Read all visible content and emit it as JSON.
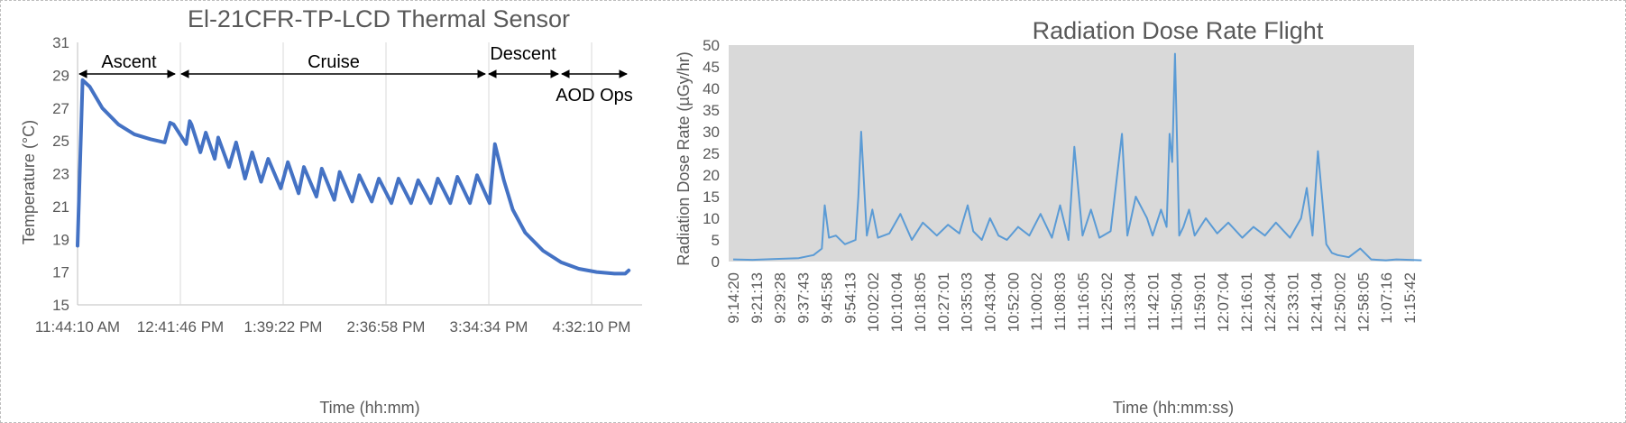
{
  "chart_data": [
    {
      "type": "line",
      "title": "El-21CFR-TP-LCD Thermal Sensor",
      "xlabel": "Time (hh:mm)",
      "ylabel": "Temperature (°C)",
      "ylim": [
        15,
        31
      ],
      "yticks": [
        "15",
        "17",
        "19",
        "21",
        "23",
        "25",
        "27",
        "29",
        "31"
      ],
      "xticks": [
        "11:44:10 AM",
        "12:41:46 PM",
        "1:39:22 PM",
        "2:36:58 PM",
        "3:34:34 PM",
        "4:32:10 PM"
      ],
      "grid": "vertical",
      "series_color": "#4472C4",
      "phases": [
        {
          "label": "Ascent"
        },
        {
          "label": "Cruise"
        },
        {
          "label": "Descent"
        },
        {
          "label": "AOD Ops"
        }
      ],
      "series": [
        {
          "x": [
            "11:44:10 AM",
            "11:47:00 AM",
            "11:51:00 AM",
            "11:58:00 AM",
            "12:07:00 PM",
            "12:16:00 PM",
            "12:25:00 PM",
            "12:33:00 PM",
            "12:36:00 PM",
            "12:38:00 PM",
            "12:45:00 PM",
            "12:47:00 PM",
            "12:48:00 PM",
            "12:53:00 PM",
            "12:56:00 PM",
            "1:01:00 PM",
            "1:03:00 PM",
            "1:09:00 PM",
            "1:13:00 PM",
            "1:18:00 PM",
            "1:22:00 PM",
            "1:27:00 PM",
            "1:31:00 PM",
            "1:38:00 PM",
            "1:42:00 PM",
            "1:48:00 PM",
            "1:51:00 PM",
            "1:58:00 PM",
            "2:01:00 PM",
            "2:08:00 PM",
            "2:11:00 PM",
            "2:18:00 PM",
            "2:22:00 PM",
            "2:29:00 PM",
            "2:33:00 PM",
            "2:40:00 PM",
            "2:44:00 PM",
            "2:51:00 PM",
            "2:55:00 PM",
            "3:02:00 PM",
            "3:06:00 PM",
            "3:13:00 PM",
            "3:17:00 PM",
            "3:24:00 PM",
            "3:28:00 PM",
            "3:35:00 PM",
            "3:38:00 PM",
            "3:43:00 PM",
            "3:48:00 PM",
            "3:55:00 PM",
            "4:05:00 PM",
            "4:15:00 PM",
            "4:25:00 PM",
            "4:35:00 PM",
            "4:45:00 PM",
            "4:51:00 PM",
            "4:53:00 PM"
          ],
          "values": [
            18.6,
            28.7,
            28.3,
            27.0,
            26.0,
            25.4,
            25.1,
            24.9,
            26.1,
            26.0,
            24.8,
            26.2,
            26.0,
            24.3,
            25.5,
            23.9,
            25.2,
            23.4,
            24.9,
            22.7,
            24.3,
            22.5,
            23.9,
            22.1,
            23.7,
            21.8,
            23.4,
            21.6,
            23.3,
            21.4,
            23.1,
            21.3,
            22.9,
            21.3,
            22.7,
            21.2,
            22.7,
            21.2,
            22.6,
            21.2,
            22.7,
            21.2,
            22.8,
            21.2,
            22.9,
            21.2,
            24.8,
            22.6,
            20.8,
            19.4,
            18.3,
            17.6,
            17.2,
            17.0,
            16.9,
            16.9,
            17.1
          ]
        }
      ]
    },
    {
      "type": "line",
      "title": "Radiation Dose Rate Flight",
      "xlabel": "Time (hh:mm:ss)",
      "ylabel": "Radiation Dose Rate (µGy/hr)",
      "ylim": [
        0,
        50
      ],
      "yticks": [
        "0",
        "5",
        "10",
        "15",
        "20",
        "25",
        "30",
        "35",
        "40",
        "45",
        "50"
      ],
      "xticks": [
        "9:14:20",
        "9:21:13",
        "9:29:28",
        "9:37:43",
        "9:45:58",
        "9:54:13",
        "10:02:02",
        "10:10:04",
        "10:18:05",
        "10:27:01",
        "10:35:03",
        "10:43:04",
        "10:52:00",
        "11:00:02",
        "11:08:03",
        "11:16:05",
        "11:25:02",
        "11:33:04",
        "11:42:01",
        "11:50:04",
        "11:59:01",
        "12:07:04",
        "12:16:01",
        "12:24:04",
        "12:33:01",
        "12:41:04",
        "12:50:02",
        "12:58:05",
        "1:07:16",
        "1:15:42"
      ],
      "plot_background": "#D9D9D9",
      "series_color": "#5B9BD5",
      "series": [
        {
          "x": [
            "9:14:20",
            "9:21:13",
            "9:29:28",
            "9:37:43",
            "9:43:00",
            "9:45:58",
            "9:47:00",
            "9:48:30",
            "9:51:00",
            "9:54:13",
            "9:58:00",
            "9:59:00",
            "10:00:00",
            "10:02:02",
            "10:04:00",
            "10:06:00",
            "10:10:04",
            "10:14:00",
            "10:18:05",
            "10:22:00",
            "10:27:01",
            "10:31:00",
            "10:35:03",
            "10:38:00",
            "10:40:00",
            "10:43:04",
            "10:46:00",
            "10:49:00",
            "10:52:00",
            "10:56:00",
            "11:00:02",
            "11:04:00",
            "11:08:03",
            "11:11:00",
            "11:14:00",
            "11:16:05",
            "11:19:00",
            "11:22:00",
            "11:25:02",
            "11:29:00",
            "11:33:04",
            "11:35:00",
            "11:38:00",
            "11:42:01",
            "11:44:00",
            "11:47:00",
            "11:49:00",
            "11:50:04",
            "11:51:00",
            "11:52:00",
            "11:53:30",
            "11:55:00",
            "11:57:00",
            "11:59:01",
            "12:03:00",
            "12:07:04",
            "12:11:00",
            "12:16:01",
            "12:20:00",
            "12:24:04",
            "12:28:00",
            "12:33:01",
            "12:37:00",
            "12:39:00",
            "12:41:04",
            "12:43:00",
            "12:46:00",
            "12:48:00",
            "12:50:02",
            "12:54:00",
            "12:58:05",
            "1:02:00",
            "1:07:16",
            "1:11:00",
            "1:15:42",
            "1:20:00"
          ],
          "values": [
            0.5,
            0.4,
            0.6,
            0.8,
            1.5,
            3.0,
            13.0,
            5.5,
            6.0,
            4.0,
            5.0,
            15.0,
            30.0,
            6.0,
            12.0,
            5.5,
            6.5,
            11.0,
            5.0,
            9.0,
            6.0,
            8.5,
            6.5,
            13.0,
            7.0,
            5.0,
            10.0,
            6.0,
            5.0,
            8.0,
            6.0,
            11.0,
            5.5,
            13.0,
            5.0,
            26.5,
            6.0,
            12.0,
            5.5,
            7.0,
            29.5,
            6.0,
            15.0,
            10.0,
            6.0,
            12.0,
            8.0,
            29.5,
            23.0,
            48.0,
            6.0,
            8.0,
            12.0,
            6.0,
            10.0,
            6.5,
            9.0,
            5.5,
            8.0,
            6.0,
            9.0,
            5.5,
            10.0,
            17.0,
            6.0,
            25.5,
            4.0,
            2.0,
            1.5,
            1.0,
            3.0,
            0.5,
            0.3,
            0.5,
            0.4,
            0.3
          ]
        }
      ]
    }
  ]
}
